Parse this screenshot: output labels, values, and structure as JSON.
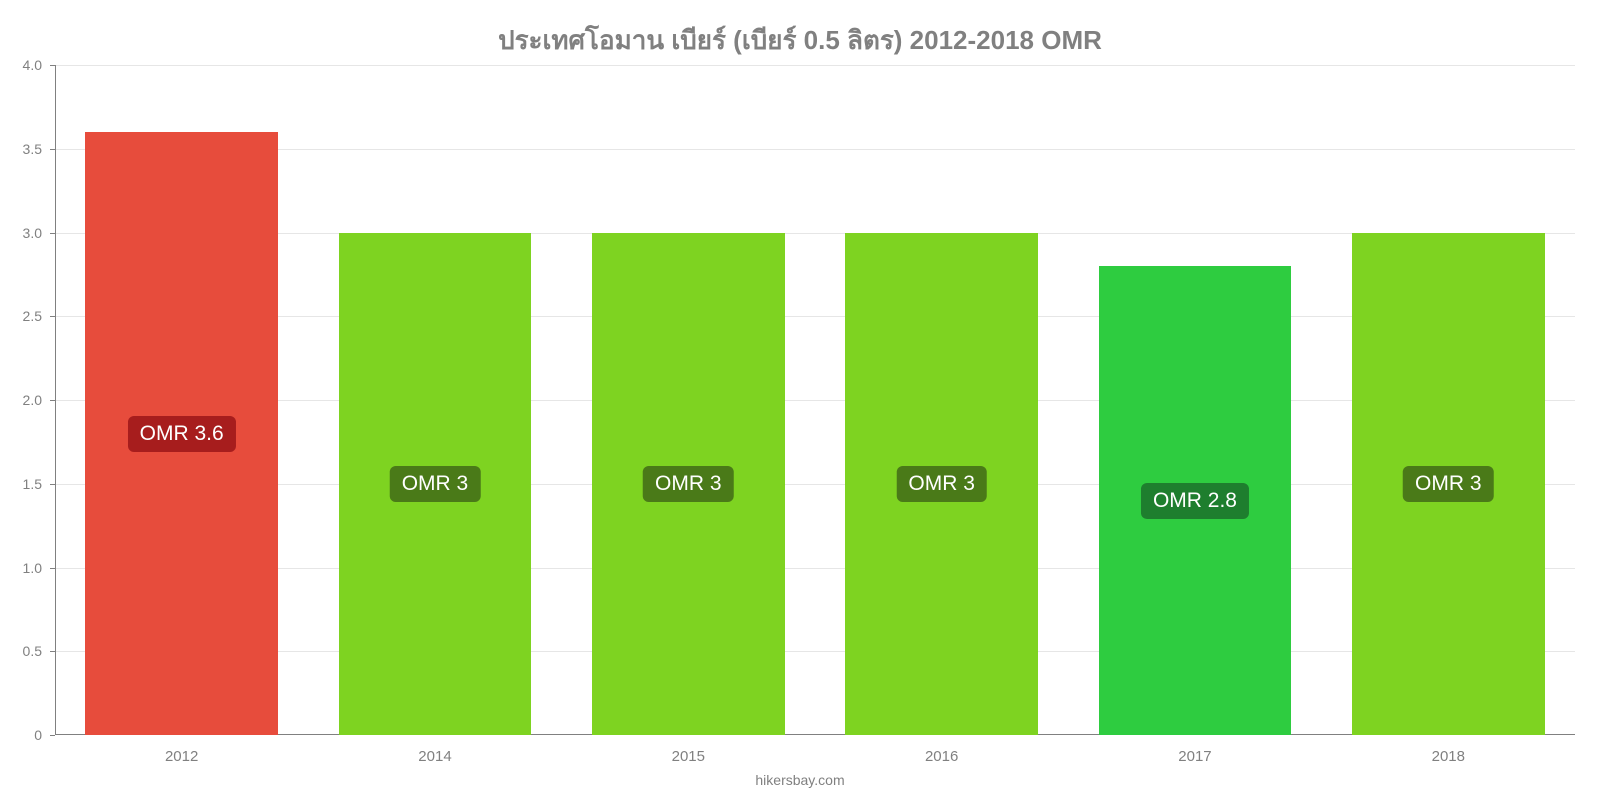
{
  "chart": {
    "type": "bar",
    "title": "ประเทศโอมาน เบียร์ (เบียร์ 0.5 ลิตร) 2012-2018 OMR",
    "title_color": "#808080",
    "title_fontsize": 26,
    "background_color": "#ffffff",
    "grid_color": "#e6e6e6",
    "axis_color": "#808080",
    "label_color": "#808080",
    "label_fontsize": 15,
    "ylim": [
      0,
      4.0
    ],
    "ytick_step": 0.5,
    "yticks": [
      "0",
      "0.5",
      "1.0",
      "1.5",
      "2.0",
      "2.5",
      "3.0",
      "3.5",
      "4.0"
    ],
    "categories": [
      "2012",
      "2014",
      "2015",
      "2016",
      "2017",
      "2018"
    ],
    "values": [
      3.6,
      3.0,
      3.0,
      3.0,
      2.8,
      3.0
    ],
    "bar_colors": [
      "#e74c3c",
      "#7ed321",
      "#7ed321",
      "#7ed321",
      "#2ecc40",
      "#7ed321"
    ],
    "bar_labels": [
      "OMR 3.6",
      "OMR 3",
      "OMR 3",
      "OMR 3",
      "OMR 2.8",
      "OMR 3"
    ],
    "bar_label_backgrounds": [
      "#a71d1d",
      "#4a7a18",
      "#4a7a18",
      "#4a7a18",
      "#1e7e2e",
      "#4a7a18"
    ],
    "bar_label_text_color": "#ffffff",
    "bar_label_fontsize": 21,
    "bar_width": 0.76,
    "attribution": "hikersbay.com"
  }
}
